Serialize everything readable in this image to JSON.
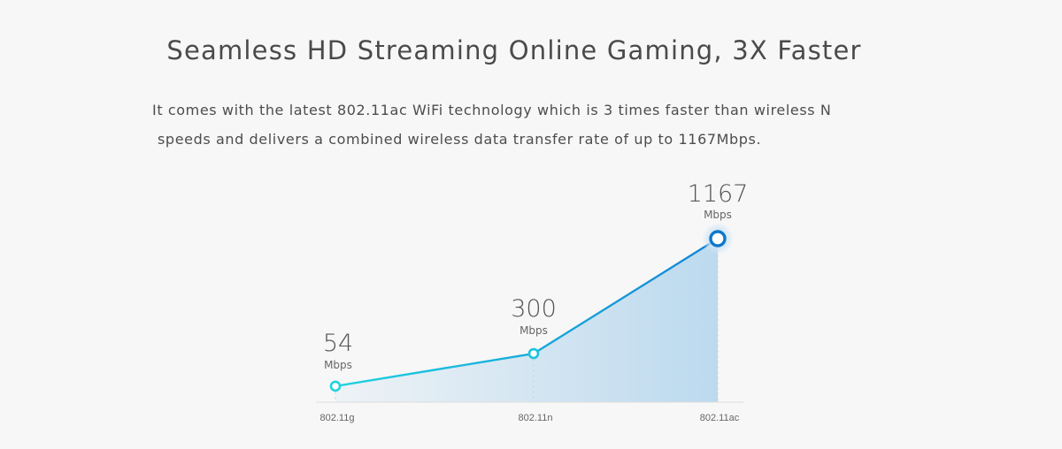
{
  "headline": "Seamless HD Streaming Online Gaming, 3X Faster",
  "description": {
    "line1": "It comes with the latest 802.11ac WiFi technology which is 3 times faster than wireless N",
    "line2": "speeds and delivers a combined wireless data transfer rate of up to 1167Mbps."
  },
  "colors": {
    "line_start": "#1ed3e0",
    "line_end": "#1283d4",
    "area": "#b9d8ee",
    "point_last": "#0e78c9"
  },
  "chart_data": {
    "type": "line",
    "categories": [
      "802.11g",
      "802.11n",
      "802.11ac"
    ],
    "values": [
      54,
      300,
      1167
    ],
    "units": [
      "Mbps",
      "Mbps",
      "Mbps"
    ],
    "data_labels": [
      "54",
      "300",
      "1167"
    ],
    "ylim": [
      0,
      1167
    ],
    "grid": false,
    "legend": "none"
  }
}
